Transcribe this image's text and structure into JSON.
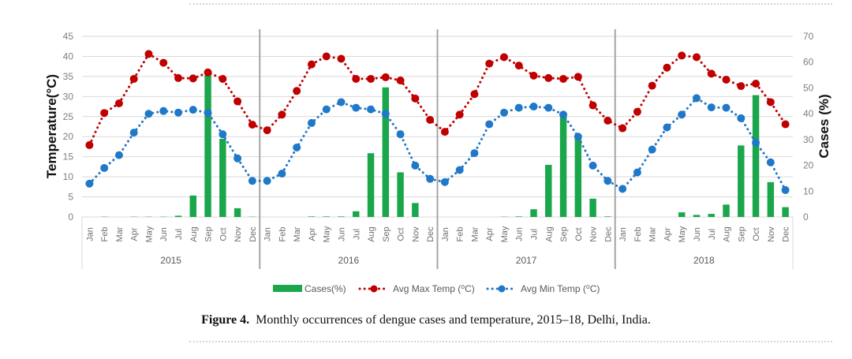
{
  "chart_data": {
    "type": "bar+line",
    "title": "",
    "months": [
      "Jan",
      "Feb",
      "Mar",
      "Apr",
      "May",
      "Jun",
      "Jul",
      "Aug",
      "Sep",
      "Oct",
      "Nov",
      "Dec"
    ],
    "years": [
      "2015",
      "2016",
      "2017",
      "2018"
    ],
    "ylabel_left": "Temperature(°C)",
    "ylabel_right": "Cases (%)",
    "ylim_left": [
      0,
      45
    ],
    "ylim_right": [
      0,
      70
    ],
    "yticks_left": [
      0,
      5,
      10,
      15,
      20,
      25,
      30,
      35,
      40,
      45
    ],
    "yticks_right": [
      0,
      10,
      20,
      30,
      40,
      50,
      60,
      70
    ],
    "grid": true,
    "legend_position": "bottom",
    "series": [
      {
        "name": "Cases(%)",
        "kind": "bar",
        "axis": "right",
        "color": "#1aa64a",
        "values": [
          0,
          0.1,
          0,
          0.1,
          0.1,
          0.1,
          0.5,
          8.3,
          55.0,
          30.3,
          3.4,
          0.1,
          0,
          0,
          0,
          0.2,
          0.2,
          0.2,
          2.2,
          24.7,
          50.2,
          17.3,
          5.4,
          0,
          0,
          0,
          0,
          0,
          0.1,
          0.2,
          3.0,
          20.2,
          39.2,
          30.6,
          7.1,
          0.2,
          0,
          0,
          0,
          0,
          1.8,
          0.8,
          1.2,
          4.8,
          27.7,
          47.2,
          13.5,
          3.8
        ]
      },
      {
        "name": "Avg Max Temp (⁰C)",
        "kind": "line",
        "axis": "left",
        "color": "#c00000",
        "values": [
          17.9,
          25.9,
          28.3,
          34.4,
          40.6,
          38.4,
          34.6,
          34.5,
          36.0,
          34.4,
          28.8,
          23.0,
          21.6,
          25.5,
          31.4,
          38.0,
          40.0,
          39.4,
          34.4,
          34.4,
          34.8,
          34.0,
          29.5,
          24.2,
          21.2,
          25.5,
          30.6,
          38.2,
          39.8,
          37.7,
          35.2,
          34.6,
          34.4,
          34.9,
          27.8,
          24.0,
          22.1,
          26.2,
          32.7,
          37.2,
          40.2,
          39.8,
          35.7,
          34.2,
          32.6,
          33.2,
          28.6,
          23.1
        ]
      },
      {
        "name": "Avg Min Temp (⁰C)",
        "kind": "line",
        "axis": "left",
        "color": "#1f78c8",
        "values": [
          8.3,
          12.2,
          15.4,
          21.0,
          25.7,
          26.4,
          26.0,
          26.7,
          25.9,
          20.6,
          14.6,
          9.0,
          9.0,
          10.8,
          17.3,
          23.4,
          26.8,
          28.6,
          27.2,
          26.8,
          25.7,
          20.6,
          12.8,
          9.5,
          8.7,
          11.7,
          15.9,
          23.1,
          26.0,
          27.2,
          27.5,
          27.2,
          25.5,
          20.0,
          12.8,
          9.0,
          7.0,
          11.1,
          16.8,
          22.3,
          25.5,
          29.6,
          27.3,
          27.2,
          24.6,
          18.5,
          13.6,
          6.7
        ]
      }
    ]
  },
  "caption": {
    "label": "Figure 4.",
    "text": "Monthly occurrences of dengue cases and temperature, 2015–18, Delhi, India."
  }
}
